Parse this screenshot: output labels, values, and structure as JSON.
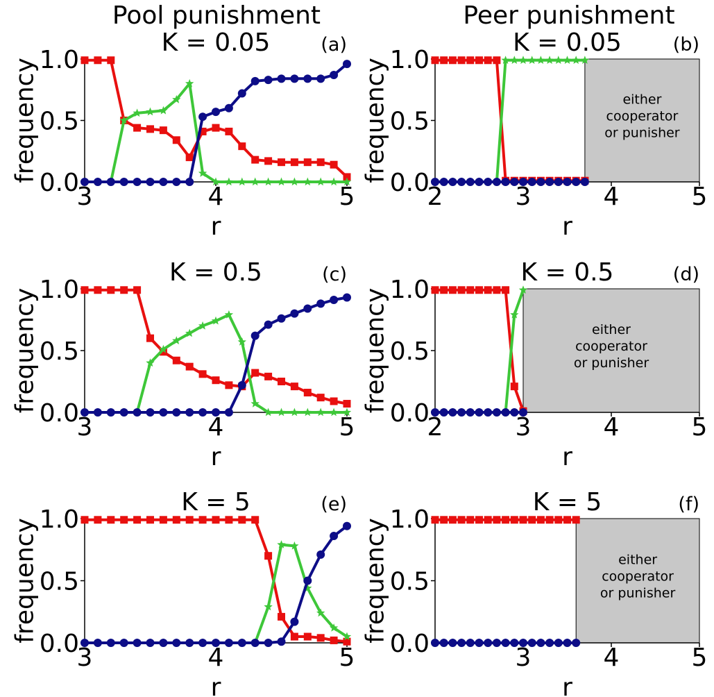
{
  "column_titles": [
    "Pool punishment",
    "Peer punishment"
  ],
  "colors": {
    "red": "#e8100f",
    "green": "#3ec739",
    "navy": "#0d0d87",
    "shade": "#c8c8c8"
  },
  "chart_data": [
    {
      "type": "line",
      "panel": "(a)",
      "title": "K = 0.05",
      "xlabel": "r",
      "ylabel": "frequency",
      "xlim": [
        3,
        5
      ],
      "ylim": [
        0,
        1
      ],
      "xticks": [
        3,
        4,
        5
      ],
      "xtick_labels": [
        "3",
        "4",
        "5"
      ],
      "yticks": [
        0,
        0.5,
        1
      ],
      "ytick_labels": [
        "0.0",
        "0.5",
        "1.0"
      ],
      "x": [
        3.0,
        3.1,
        3.2,
        3.3,
        3.4,
        3.5,
        3.6,
        3.7,
        3.8,
        3.9,
        4.0,
        4.1,
        4.2,
        4.3,
        4.4,
        4.5,
        4.6,
        4.7,
        4.8,
        4.9,
        5.0
      ],
      "series": [
        {
          "color": "red",
          "marker": "square",
          "values": [
            0.99,
            0.99,
            0.99,
            0.5,
            0.44,
            0.43,
            0.42,
            0.34,
            0.2,
            0.41,
            0.44,
            0.41,
            0.29,
            0.18,
            0.17,
            0.16,
            0.16,
            0.16,
            0.16,
            0.14,
            0.04
          ]
        },
        {
          "color": "green",
          "marker": "star",
          "values": [
            0,
            0,
            0,
            0.5,
            0.56,
            0.57,
            0.58,
            0.67,
            0.8,
            0.07,
            0,
            0,
            0,
            0,
            0,
            0,
            0,
            0,
            0,
            0,
            0
          ]
        },
        {
          "color": "navy",
          "marker": "circle",
          "values": [
            0,
            0,
            0,
            0,
            0,
            0,
            0,
            0,
            0,
            0.53,
            0.57,
            0.6,
            0.72,
            0.82,
            0.83,
            0.84,
            0.84,
            0.84,
            0.84,
            0.87,
            0.96
          ]
        }
      ]
    },
    {
      "type": "line",
      "panel": "(b)",
      "title": "K = 0.05",
      "xlabel": "r",
      "ylabel": "frequency",
      "xlim": [
        2,
        5
      ],
      "ylim": [
        0,
        1
      ],
      "xticks": [
        2,
        3,
        4,
        5
      ],
      "xtick_labels": [
        "2",
        "3",
        "4",
        "5"
      ],
      "yticks": [
        0,
        0.5,
        1
      ],
      "ytick_labels": [
        "0.0",
        "0.5",
        "1.0"
      ],
      "shade_from": 3.7,
      "shade_text": [
        "either",
        "cooperator",
        "or punisher"
      ],
      "x": [
        2.0,
        2.1,
        2.2,
        2.3,
        2.4,
        2.5,
        2.6,
        2.7,
        2.8,
        2.9,
        3.0,
        3.1,
        3.2,
        3.3,
        3.4,
        3.5,
        3.6,
        3.7
      ],
      "series": [
        {
          "color": "red",
          "marker": "square",
          "values": [
            0.99,
            0.99,
            0.99,
            0.99,
            0.99,
            0.99,
            0.99,
            0.99,
            0.01,
            0.01,
            0.01,
            0.01,
            0.01,
            0.01,
            0.01,
            0.01,
            0.01,
            0.01
          ]
        },
        {
          "color": "green",
          "marker": "star",
          "values": [
            0,
            0,
            0,
            0,
            0,
            0,
            0,
            0,
            0.99,
            0.99,
            0.99,
            0.99,
            0.99,
            0.99,
            0.99,
            0.99,
            0.99,
            0.99
          ]
        },
        {
          "color": "navy",
          "marker": "circle",
          "values": [
            0,
            0,
            0,
            0,
            0,
            0,
            0,
            0,
            0,
            0,
            0,
            0,
            0,
            0,
            0,
            0,
            0,
            0
          ]
        }
      ]
    },
    {
      "type": "line",
      "panel": "(c)",
      "title": "K = 0.5",
      "xlabel": "r",
      "ylabel": "frequency",
      "xlim": [
        3,
        5
      ],
      "ylim": [
        0,
        1
      ],
      "xticks": [
        3,
        4,
        5
      ],
      "xtick_labels": [
        "3",
        "4",
        "5"
      ],
      "yticks": [
        0,
        0.5,
        1
      ],
      "ytick_labels": [
        "0.0",
        "0.5",
        "1.0"
      ],
      "x": [
        3.0,
        3.1,
        3.2,
        3.3,
        3.4,
        3.5,
        3.6,
        3.7,
        3.8,
        3.9,
        4.0,
        4.1,
        4.2,
        4.3,
        4.4,
        4.5,
        4.6,
        4.7,
        4.8,
        4.9,
        5.0
      ],
      "series": [
        {
          "color": "red",
          "marker": "square",
          "values": [
            0.99,
            0.99,
            0.99,
            0.99,
            0.99,
            0.6,
            0.49,
            0.42,
            0.37,
            0.31,
            0.26,
            0.22,
            0.21,
            0.32,
            0.29,
            0.25,
            0.21,
            0.16,
            0.12,
            0.09,
            0.07
          ]
        },
        {
          "color": "green",
          "marker": "star",
          "values": [
            0,
            0,
            0,
            0,
            0,
            0.4,
            0.51,
            0.58,
            0.64,
            0.7,
            0.74,
            0.79,
            0.57,
            0.07,
            0,
            0,
            0,
            0,
            0,
            0,
            0
          ]
        },
        {
          "color": "navy",
          "marker": "circle",
          "values": [
            0,
            0,
            0,
            0,
            0,
            0,
            0,
            0,
            0,
            0,
            0,
            0,
            0.22,
            0.62,
            0.71,
            0.76,
            0.8,
            0.84,
            0.88,
            0.91,
            0.93
          ]
        }
      ]
    },
    {
      "type": "line",
      "panel": "(d)",
      "title": "K = 0.5",
      "xlabel": "r",
      "ylabel": "frequency",
      "xlim": [
        2,
        5
      ],
      "ylim": [
        0,
        1
      ],
      "xticks": [
        2,
        3,
        4,
        5
      ],
      "xtick_labels": [
        "2",
        "3",
        "4",
        "5"
      ],
      "yticks": [
        0,
        0.5,
        1
      ],
      "ytick_labels": [
        "0.0",
        "0.5",
        "1.0"
      ],
      "shade_from": 3.0,
      "shade_text": [
        "either",
        "cooperator",
        "or punisher"
      ],
      "x": [
        2.0,
        2.1,
        2.2,
        2.3,
        2.4,
        2.5,
        2.6,
        2.7,
        2.8,
        2.9,
        3.0
      ],
      "series": [
        {
          "color": "red",
          "marker": "square",
          "values": [
            0.99,
            0.99,
            0.99,
            0.99,
            0.99,
            0.99,
            0.99,
            0.99,
            0.99,
            0.21,
            0.01
          ]
        },
        {
          "color": "green",
          "marker": "star",
          "values": [
            0,
            0,
            0,
            0,
            0,
            0,
            0,
            0,
            0,
            0.79,
            0.99
          ]
        },
        {
          "color": "navy",
          "marker": "circle",
          "values": [
            0,
            0,
            0,
            0,
            0,
            0,
            0,
            0,
            0,
            0,
            0
          ]
        }
      ]
    },
    {
      "type": "line",
      "panel": "(e)",
      "title": "K = 5",
      "xlabel": "r",
      "ylabel": "frequency",
      "xlim": [
        3,
        5
      ],
      "ylim": [
        0,
        1
      ],
      "xticks": [
        3,
        4,
        5
      ],
      "xtick_labels": [
        "3",
        "4",
        "5"
      ],
      "yticks": [
        0,
        0.5,
        1
      ],
      "ytick_labels": [
        "0.0",
        "0.5",
        "1.0"
      ],
      "x": [
        3.0,
        3.1,
        3.2,
        3.3,
        3.4,
        3.5,
        3.6,
        3.7,
        3.8,
        3.9,
        4.0,
        4.1,
        4.2,
        4.3,
        4.4,
        4.5,
        4.6,
        4.7,
        4.8,
        4.9,
        5.0
      ],
      "series": [
        {
          "color": "red",
          "marker": "square",
          "values": [
            0.99,
            0.99,
            0.99,
            0.99,
            0.99,
            0.99,
            0.99,
            0.99,
            0.99,
            0.99,
            0.99,
            0.99,
            0.99,
            0.99,
            0.7,
            0.21,
            0.05,
            0.05,
            0.04,
            0.02,
            0.01
          ]
        },
        {
          "color": "green",
          "marker": "star",
          "values": [
            0,
            0,
            0,
            0,
            0,
            0,
            0,
            0,
            0,
            0,
            0,
            0,
            0,
            0,
            0.29,
            0.79,
            0.78,
            0.44,
            0.24,
            0.12,
            0.05
          ]
        },
        {
          "color": "navy",
          "marker": "circle",
          "values": [
            0,
            0,
            0,
            0,
            0,
            0,
            0,
            0,
            0,
            0,
            0,
            0,
            0,
            0,
            0,
            0.01,
            0.17,
            0.5,
            0.71,
            0.86,
            0.94
          ]
        }
      ]
    },
    {
      "type": "line",
      "panel": "(f)",
      "title": "K = 5",
      "xlabel": "r",
      "ylabel": "frequency",
      "xlim": [
        2,
        5
      ],
      "ylim": [
        0,
        1
      ],
      "xticks": [
        3,
        4,
        5
      ],
      "xtick_labels": [
        "3",
        "4",
        "5"
      ],
      "yticks": [
        0,
        0.5,
        1
      ],
      "ytick_labels": [
        "0.0",
        "0.5",
        "1.0"
      ],
      "shade_from": 3.6,
      "shade_text": [
        "either",
        "cooperator",
        "or punisher"
      ],
      "x": [
        2.0,
        2.1,
        2.2,
        2.3,
        2.4,
        2.5,
        2.6,
        2.7,
        2.8,
        2.9,
        3.0,
        3.1,
        3.2,
        3.3,
        3.4,
        3.5,
        3.6
      ],
      "series": [
        {
          "color": "red",
          "marker": "square",
          "values": [
            0.99,
            0.99,
            0.99,
            0.99,
            0.99,
            0.99,
            0.99,
            0.99,
            0.99,
            0.99,
            0.99,
            0.99,
            0.99,
            0.99,
            0.99,
            0.99,
            0.99
          ]
        },
        {
          "color": "green",
          "marker": "star",
          "values": [
            0,
            0,
            0,
            0,
            0,
            0,
            0,
            0,
            0,
            0,
            0,
            0,
            0,
            0,
            0,
            0,
            0
          ]
        },
        {
          "color": "navy",
          "marker": "circle",
          "values": [
            0,
            0,
            0,
            0,
            0,
            0,
            0,
            0,
            0,
            0,
            0,
            0,
            0,
            0,
            0,
            0,
            0
          ]
        }
      ]
    }
  ]
}
